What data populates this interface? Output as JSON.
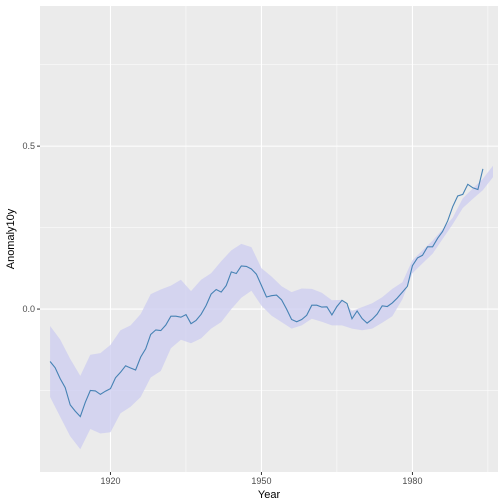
{
  "chart_data": {
    "type": "line",
    "title": "",
    "xlabel": "Year",
    "ylabel": "Anomaly10y",
    "xlim": [
      1906,
      1997
    ],
    "ylim": [
      -0.5,
      0.93
    ],
    "x_ticks": [
      1920,
      1950,
      1980
    ],
    "x_tick_labels": [
      "1920",
      "1950",
      "1980"
    ],
    "y_ticks": [
      0.0,
      0.5
    ],
    "y_tick_labels": [
      "0.0",
      "0.5"
    ],
    "grid": true,
    "legend": "none",
    "colors": {
      "panel_bg": "#ebebeb",
      "grid_major": "#ffffff",
      "line": "#4682b4",
      "ribbon": "#ccccf0"
    },
    "series": [
      {
        "x": [
          1908,
          1909,
          1910,
          1911,
          1912,
          1913,
          1914,
          1915,
          1916,
          1917,
          1918,
          1919,
          1920,
          1921,
          1922,
          1923,
          1924,
          1925,
          1926,
          1927,
          1928,
          1929,
          1930,
          1931,
          1932,
          1933,
          1934,
          1935,
          1936,
          1937,
          1938,
          1939,
          1940,
          1941,
          1942,
          1943,
          1944,
          1945,
          1946,
          1947,
          1948,
          1949,
          1950,
          1951,
          1952,
          1953,
          1954,
          1955,
          1956,
          1957,
          1958,
          1959,
          1960,
          1961,
          1962,
          1963,
          1964,
          1965,
          1966,
          1967,
          1968,
          1969,
          1970,
          1971,
          1972,
          1973,
          1974,
          1975,
          1976,
          1977,
          1978,
          1979,
          1980,
          1981,
          1982,
          1983,
          1984,
          1985,
          1986,
          1987,
          1988,
          1989,
          1990,
          1991,
          1992,
          1993,
          1994
        ],
        "y": [
          -0.161,
          -0.18,
          -0.213,
          -0.241,
          -0.294,
          -0.313,
          -0.33,
          -0.286,
          -0.25,
          -0.251,
          -0.262,
          -0.252,
          -0.244,
          -0.211,
          -0.194,
          -0.174,
          -0.181,
          -0.187,
          -0.147,
          -0.122,
          -0.078,
          -0.064,
          -0.066,
          -0.049,
          -0.022,
          -0.022,
          -0.025,
          -0.017,
          -0.045,
          -0.035,
          -0.016,
          0.011,
          0.046,
          0.06,
          0.052,
          0.072,
          0.114,
          0.109,
          0.132,
          0.131,
          0.123,
          0.107,
          0.072,
          0.037,
          0.041,
          0.043,
          0.028,
          0.0,
          -0.032,
          -0.039,
          -0.032,
          -0.019,
          0.012,
          0.012,
          0.006,
          0.007,
          -0.018,
          0.008,
          0.027,
          0.017,
          -0.03,
          -0.006,
          -0.029,
          -0.043,
          -0.031,
          -0.015,
          0.01,
          0.008,
          0.019,
          0.034,
          0.052,
          0.07,
          0.133,
          0.157,
          0.165,
          0.191,
          0.191,
          0.217,
          0.238,
          0.271,
          0.314,
          0.347,
          0.352,
          0.383,
          0.372,
          0.367,
          0.43
        ]
      }
    ],
    "confidence_band": {
      "x": [
        1908,
        1910,
        1912,
        1914,
        1916,
        1918,
        1920,
        1922,
        1924,
        1926,
        1928,
        1930,
        1932,
        1934,
        1936,
        1938,
        1940,
        1942,
        1944,
        1946,
        1948,
        1950,
        1952,
        1954,
        1956,
        1958,
        1960,
        1962,
        1964,
        1966,
        1968,
        1970,
        1972,
        1974,
        1976,
        1978,
        1980,
        1982,
        1984,
        1986,
        1988,
        1990,
        1992,
        1994,
        1996
      ],
      "upper": [
        -0.052,
        -0.093,
        -0.153,
        -0.205,
        -0.14,
        -0.135,
        -0.11,
        -0.065,
        -0.05,
        -0.015,
        0.046,
        0.06,
        0.072,
        0.09,
        0.055,
        0.09,
        0.11,
        0.147,
        0.18,
        0.2,
        0.19,
        0.125,
        0.1,
        0.07,
        0.052,
        0.063,
        0.062,
        0.05,
        0.027,
        0.028,
        -0.006,
        0.006,
        0.018,
        0.036,
        0.062,
        0.082,
        0.15,
        0.18,
        0.21,
        0.245,
        0.28,
        0.34,
        0.37,
        0.4,
        0.44
      ],
      "lower": [
        -0.27,
        -0.33,
        -0.39,
        -0.43,
        -0.368,
        -0.382,
        -0.378,
        -0.32,
        -0.3,
        -0.27,
        -0.21,
        -0.19,
        -0.12,
        -0.094,
        -0.105,
        -0.09,
        -0.06,
        -0.04,
        0.0,
        0.035,
        0.056,
        0.01,
        -0.02,
        -0.04,
        -0.06,
        -0.05,
        -0.03,
        -0.039,
        -0.05,
        -0.05,
        -0.06,
        -0.065,
        -0.06,
        -0.042,
        -0.022,
        0.03,
        0.11,
        0.14,
        0.17,
        0.215,
        0.26,
        0.31,
        0.338,
        0.365,
        0.405
      ]
    }
  }
}
